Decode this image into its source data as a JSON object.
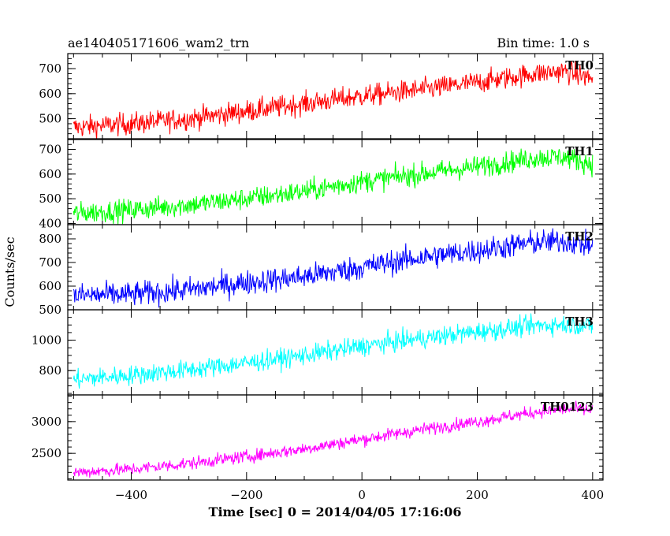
{
  "chart_data": {
    "type": "line",
    "title": "ae140405171606_wam2_trn",
    "subtitle": "Bin time: 1.0 s",
    "xlabel": "Time [sec] 0 = 2014/04/05 17:16:06",
    "ylabel": "Counts/sec",
    "xlim": [
      -510,
      418
    ],
    "x_ticks": [
      -400,
      -200,
      0,
      200,
      400
    ],
    "x_tick_labels": [
      "−400",
      "−200",
      "0",
      "200",
      "400"
    ],
    "x_range": [
      -500,
      400
    ],
    "grid": false,
    "panels": [
      {
        "name": "TH0",
        "color": "#ff0000",
        "ylim": [
          420,
          760
        ],
        "y_ticks": [
          500,
          600,
          700
        ],
        "y_tick_labels": [
          "500",
          "600",
          "700"
        ],
        "trend": [
          [
            -500,
            465
          ],
          [
            -400,
            480
          ],
          [
            -300,
            500
          ],
          [
            -200,
            530
          ],
          [
            -100,
            560
          ],
          [
            0,
            590
          ],
          [
            100,
            615
          ],
          [
            200,
            645
          ],
          [
            300,
            680
          ],
          [
            350,
            690
          ],
          [
            400,
            660
          ]
        ],
        "noise": 22
      },
      {
        "name": "TH1",
        "color": "#00ff00",
        "ylim": [
          395,
          740
        ],
        "y_ticks": [
          400,
          500,
          600,
          700
        ],
        "y_tick_labels": [
          "400",
          "500",
          "600",
          "700"
        ],
        "trend": [
          [
            -500,
            440
          ],
          [
            -400,
            455
          ],
          [
            -300,
            475
          ],
          [
            -200,
            500
          ],
          [
            -100,
            530
          ],
          [
            0,
            570
          ],
          [
            100,
            600
          ],
          [
            200,
            630
          ],
          [
            300,
            665
          ],
          [
            350,
            670
          ],
          [
            400,
            640
          ]
        ],
        "noise": 22
      },
      {
        "name": "TH2",
        "color": "#0000ff",
        "ylim": [
          500,
          860
        ],
        "y_ticks": [
          500,
          600,
          700,
          800
        ],
        "y_tick_labels": [
          "500",
          "600",
          "700",
          "800"
        ],
        "trend": [
          [
            -500,
            560
          ],
          [
            -400,
            565
          ],
          [
            -300,
            585
          ],
          [
            -200,
            615
          ],
          [
            -100,
            640
          ],
          [
            0,
            680
          ],
          [
            100,
            720
          ],
          [
            200,
            750
          ],
          [
            300,
            785
          ],
          [
            350,
            790
          ],
          [
            400,
            770
          ]
        ],
        "noise": 26
      },
      {
        "name": "TH3",
        "color": "#00ffff",
        "ylim": [
          640,
          1200
        ],
        "y_ticks": [
          800,
          1000
        ],
        "y_tick_labels": [
          "800",
          "1000"
        ],
        "trend": [
          [
            -500,
            740
          ],
          [
            -400,
            770
          ],
          [
            -300,
            805
          ],
          [
            -200,
            850
          ],
          [
            -100,
            900
          ],
          [
            0,
            960
          ],
          [
            100,
            1010
          ],
          [
            200,
            1055
          ],
          [
            300,
            1095
          ],
          [
            350,
            1105
          ],
          [
            400,
            1090
          ]
        ],
        "noise": 32
      },
      {
        "name": "TH0123",
        "color": "#ff00ff",
        "ylim": [
          2080,
          3420
        ],
        "y_ticks": [
          2500,
          3000
        ],
        "y_tick_labels": [
          "2500",
          "3000"
        ],
        "trend": [
          [
            -500,
            2200
          ],
          [
            -400,
            2250
          ],
          [
            -300,
            2340
          ],
          [
            -200,
            2450
          ],
          [
            -100,
            2570
          ],
          [
            0,
            2720
          ],
          [
            100,
            2870
          ],
          [
            200,
            3000
          ],
          [
            300,
            3150
          ],
          [
            350,
            3200
          ],
          [
            400,
            3180
          ]
        ],
        "noise": 50
      }
    ]
  }
}
